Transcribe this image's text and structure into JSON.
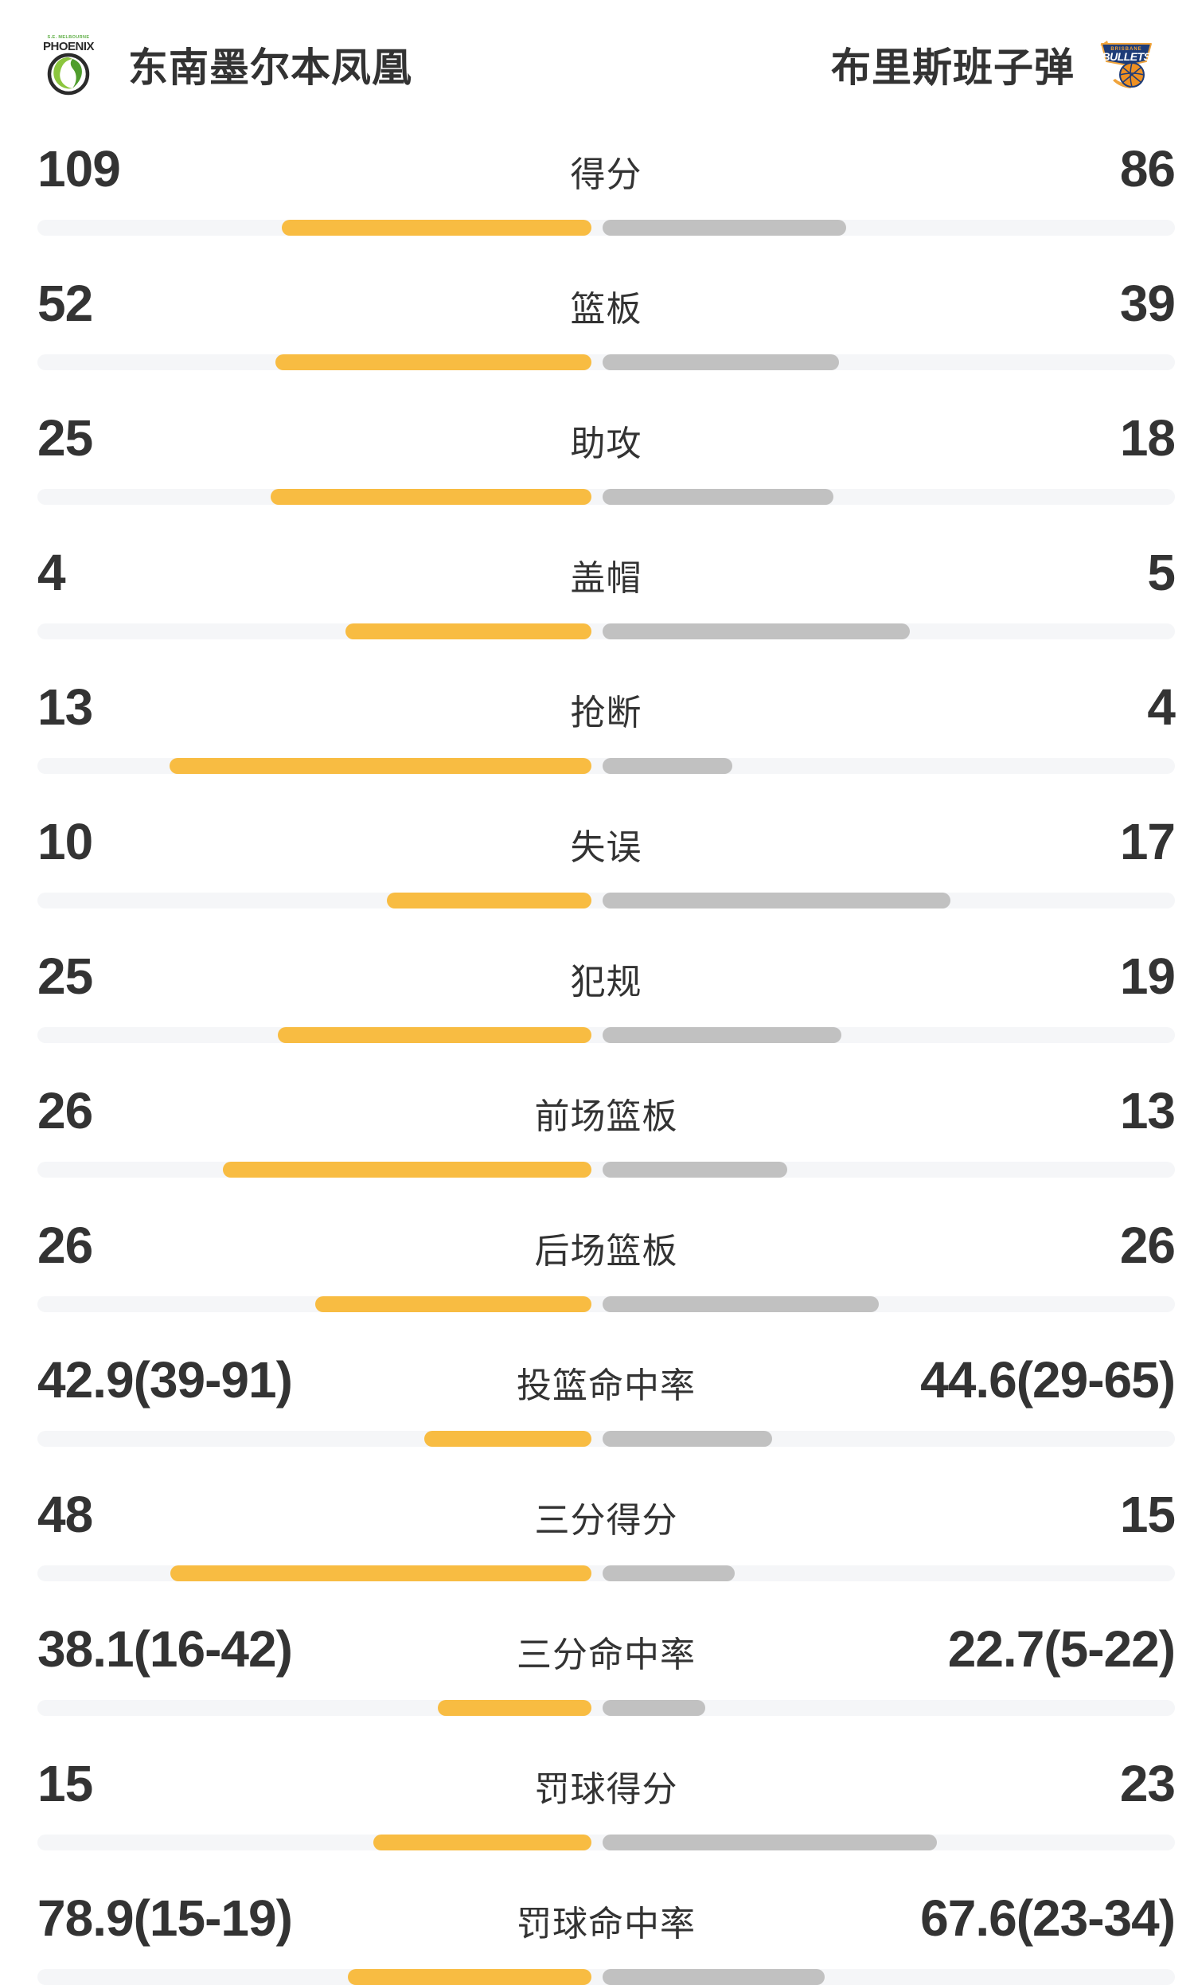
{
  "header": {
    "home": {
      "name": "东南墨尔本凤凰",
      "logo_text_top": "S.E. MELBOURNE",
      "logo_text_main": "PHOENIX"
    },
    "away": {
      "name": "布里斯班子弹",
      "logo_text_top": "BRISBANE",
      "logo_text_main": "BULLETS"
    }
  },
  "colors": {
    "background": "#FFFFFF",
    "text": "#333333",
    "home_bar": "#F8BC42",
    "away_bar": "#C1C1C1",
    "bar_track": "#F5F6F8",
    "phoenix_green": "#8CC63E",
    "phoenix_dark_green": "#4F9D2D",
    "phoenix_black": "#2B2B2B",
    "bullets_navy": "#1E3C78",
    "bullets_gold": "#F0A43C",
    "bullets_orange": "#EE9022"
  },
  "chart_data": {
    "type": "bar",
    "orientation": "horizontal-paired",
    "grid": false,
    "legend_position": "top-header",
    "teams": [
      "东南墨尔本凤凰",
      "布里斯班子弹"
    ],
    "categories": [
      "得分",
      "篮板",
      "助攻",
      "盖帽",
      "抢断",
      "失误",
      "犯规",
      "前场篮板",
      "后场篮板",
      "投篮命中率",
      "三分得分",
      "三分命中率",
      "罚球得分",
      "罚球命中率"
    ],
    "series": [
      {
        "name": "东南墨尔本凤凰",
        "color": "#F8BC42",
        "values": [
          109,
          52,
          25,
          4,
          13,
          10,
          25,
          26,
          26,
          42.9,
          48,
          38.1,
          15,
          78.9
        ]
      },
      {
        "name": "布里斯班子弹",
        "color": "#C1C1C1",
        "values": [
          86,
          39,
          18,
          5,
          4,
          17,
          19,
          13,
          26,
          44.6,
          15,
          22.7,
          23,
          67.6
        ]
      }
    ],
    "rows": [
      {
        "label": "得分",
        "left_display": "109",
        "right_display": "86",
        "left_value": 109,
        "right_value": 86,
        "bar_left_pct": 27.2,
        "bar_right_pct": 21.4
      },
      {
        "label": "篮板",
        "left_display": "52",
        "right_display": "39",
        "left_value": 52,
        "right_value": 39,
        "bar_left_pct": 27.8,
        "bar_right_pct": 20.8
      },
      {
        "label": "助攻",
        "left_display": "25",
        "right_display": "18",
        "left_value": 25,
        "right_value": 18,
        "bar_left_pct": 28.2,
        "bar_right_pct": 20.3
      },
      {
        "label": "盖帽",
        "left_display": "4",
        "right_display": "5",
        "left_value": 4,
        "right_value": 5,
        "bar_left_pct": 21.6,
        "bar_right_pct": 27.0
      },
      {
        "label": "抢断",
        "left_display": "13",
        "right_display": "4",
        "left_value": 13,
        "right_value": 4,
        "bar_left_pct": 37.1,
        "bar_right_pct": 11.4
      },
      {
        "label": "失误",
        "left_display": "10",
        "right_display": "17",
        "left_value": 10,
        "right_value": 17,
        "bar_left_pct": 18.0,
        "bar_right_pct": 30.6
      },
      {
        "label": "犯规",
        "left_display": "25",
        "right_display": "19",
        "left_value": 25,
        "right_value": 19,
        "bar_left_pct": 27.6,
        "bar_right_pct": 21.0
      },
      {
        "label": "前场篮板",
        "left_display": "26",
        "right_display": "13",
        "left_value": 26,
        "right_value": 13,
        "bar_left_pct": 32.4,
        "bar_right_pct": 16.2
      },
      {
        "label": "后场篮板",
        "left_display": "26",
        "right_display": "26",
        "left_value": 26,
        "right_value": 26,
        "bar_left_pct": 24.3,
        "bar_right_pct": 24.3
      },
      {
        "label": "投篮命中率",
        "left_display": "42.9(39-91)",
        "right_display": "44.6(29-65)",
        "left_value": 42.9,
        "right_value": 44.6,
        "bar_left_pct": 14.7,
        "bar_right_pct": 14.9
      },
      {
        "label": "三分得分",
        "left_display": "48",
        "right_display": "15",
        "left_value": 48,
        "right_value": 15,
        "bar_left_pct": 37.0,
        "bar_right_pct": 11.6
      },
      {
        "label": "三分命中率",
        "left_display": "38.1(16-42)",
        "right_display": "22.7(5-22)",
        "left_value": 38.1,
        "right_value": 22.7,
        "bar_left_pct": 13.5,
        "bar_right_pct": 9.0
      },
      {
        "label": "罚球得分",
        "left_display": "15",
        "right_display": "23",
        "left_value": 15,
        "right_value": 23,
        "bar_left_pct": 19.2,
        "bar_right_pct": 29.4
      },
      {
        "label": "罚球命中率",
        "left_display": "78.9(15-19)",
        "right_display": "67.6(23-34)",
        "left_value": 78.9,
        "right_value": 67.6,
        "bar_left_pct": 21.4,
        "bar_right_pct": 19.5
      }
    ]
  }
}
